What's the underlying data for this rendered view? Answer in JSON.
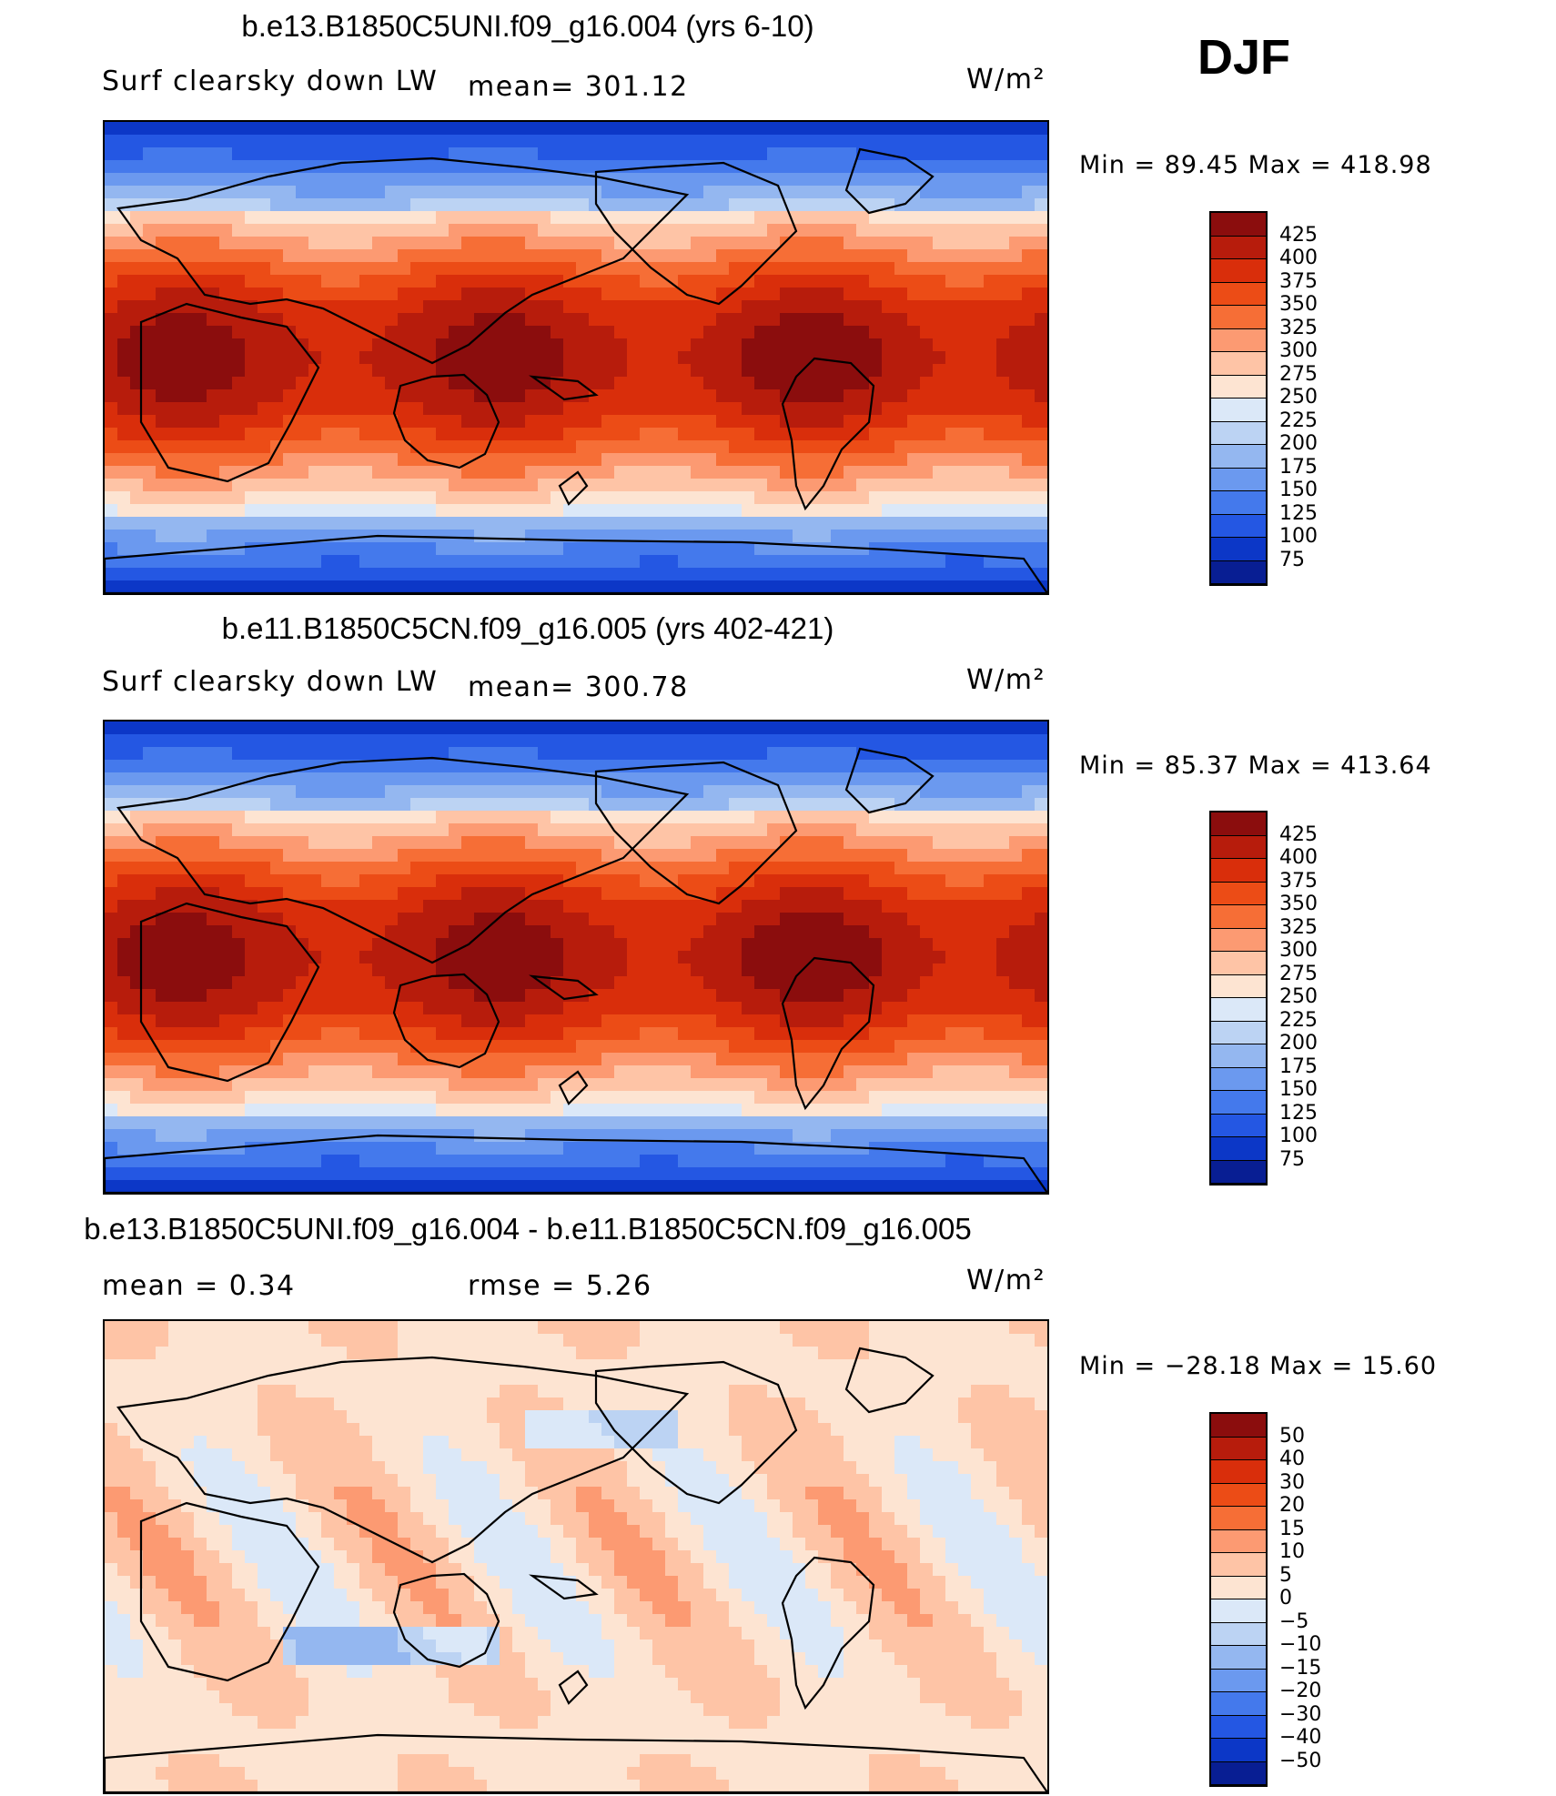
{
  "season": "DJF",
  "panels": [
    {
      "title": "b.e13.B1850C5UNI.f09_g16.004 (yrs 6-10)",
      "variable": "Surf clearsky down LW",
      "stat": "mean= 301.12",
      "units": "W/m²",
      "min_max": "Min =   89.45 Max = 418.98",
      "kind": "abs",
      "colorbar": {
        "labels": [
          "425",
          "400",
          "375",
          "350",
          "325",
          "300",
          "275",
          "250",
          "225",
          "200",
          "175",
          "150",
          "125",
          "100",
          "75"
        ],
        "colors": [
          "#8b0d0d",
          "#b71c0c",
          "#d92e0b",
          "#ec4c16",
          "#f66e36",
          "#fc9a72",
          "#fec4a6",
          "#fde4d2",
          "#dbe8f8",
          "#bcd3f3",
          "#94b7f0",
          "#6b99ef",
          "#4479ec",
          "#2457e3",
          "#0c37c7",
          "#081e93"
        ]
      }
    },
    {
      "title": "b.e11.B1850C5CN.f09_g16.005 (yrs 402-421)",
      "variable": "Surf clearsky down LW",
      "stat": "mean= 300.78",
      "units": "W/m²",
      "min_max": "Min =   85.37 Max = 413.64",
      "kind": "abs",
      "colorbar": {
        "labels": [
          "425",
          "400",
          "375",
          "350",
          "325",
          "300",
          "275",
          "250",
          "225",
          "200",
          "175",
          "150",
          "125",
          "100",
          "75"
        ],
        "colors": [
          "#8b0d0d",
          "#b71c0c",
          "#d92e0b",
          "#ec4c16",
          "#f66e36",
          "#fc9a72",
          "#fec4a6",
          "#fde4d2",
          "#dbe8f8",
          "#bcd3f3",
          "#94b7f0",
          "#6b99ef",
          "#4479ec",
          "#2457e3",
          "#0c37c7",
          "#081e93"
        ]
      }
    },
    {
      "title": "b.e13.B1850C5UNI.f09_g16.004 - b.e11.B1850C5CN.f09_g16.005",
      "variable": "mean =    0.34",
      "stat": "rmse =    5.26",
      "units": "W/m²",
      "min_max": "Min = −28.18 Max =  15.60",
      "kind": "diff",
      "colorbar": {
        "labels": [
          "50",
          "40",
          "30",
          "20",
          "15",
          "10",
          "5",
          "0",
          "−5",
          "−10",
          "−15",
          "−20",
          "−30",
          "−40",
          "−50"
        ],
        "colors": [
          "#8b0d0d",
          "#b71c0c",
          "#d92e0b",
          "#ec4c16",
          "#f66e36",
          "#fc9a72",
          "#fec4a6",
          "#fde4d2",
          "#dbe8f8",
          "#bcd3f3",
          "#94b7f0",
          "#6b99ef",
          "#4479ec",
          "#2457e3",
          "#0c37c7",
          "#081e93"
        ]
      }
    }
  ]
}
